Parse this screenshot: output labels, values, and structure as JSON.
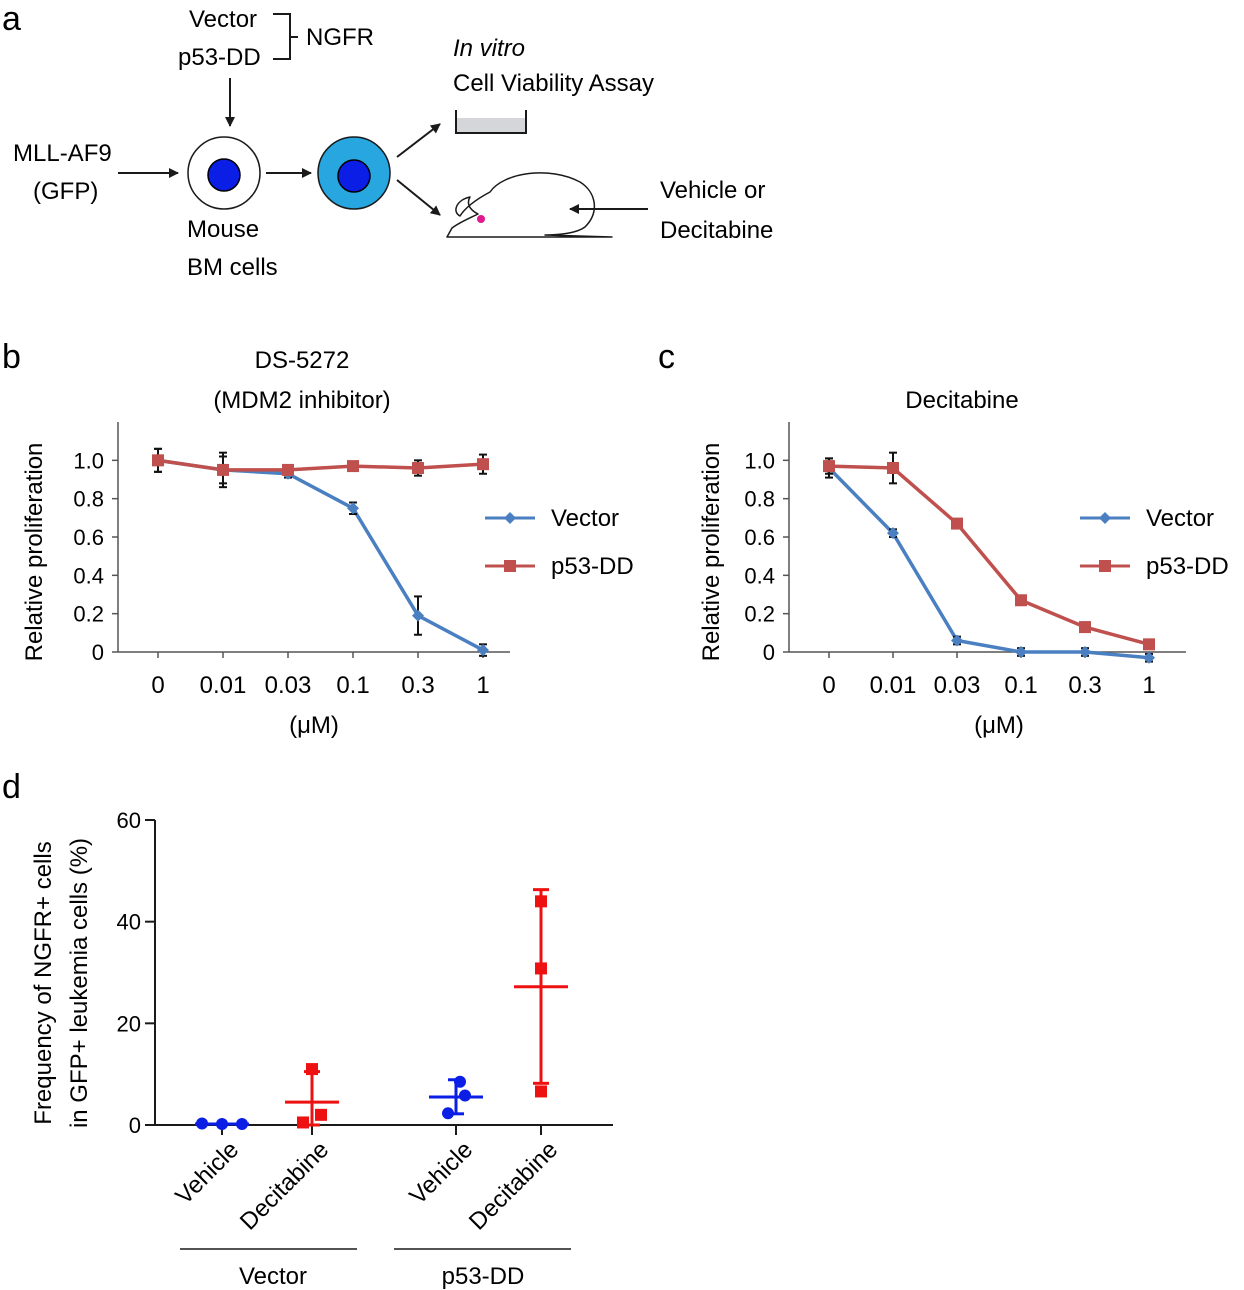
{
  "panel_a": {
    "panel_label": "a",
    "vector": "Vector",
    "p53dd": "p53-DD",
    "ngfr": "NGFR",
    "mllaf9": "MLL-AF9",
    "gfp": "(GFP)",
    "mouse": "Mouse",
    "bm_cells": "BM cells",
    "in_vitro": "In vitro",
    "assay": "Cell Viability Assay",
    "vehicle_or": "Vehicle or",
    "decitabine": "Decitabine",
    "colors": {
      "nucleus": "#0a1ee6",
      "gfp_cell": "#27a6e0",
      "dish_fill": "#d4d6d9",
      "dot": "#e0198c"
    }
  },
  "chart_data": [
    {
      "id": "b",
      "panel_label": "b",
      "type": "line",
      "title": "DS-5272",
      "subtitle": "(MDM2 inhibitor)",
      "ylabel": "Relative proliferation",
      "xlabel": "(μM)",
      "categories": [
        "0",
        "0.01",
        "0.03",
        "0.1",
        "0.3",
        "1"
      ],
      "ylim": [
        0,
        1.2
      ],
      "yticks": [
        "0",
        "0.2",
        "0.4",
        "0.6",
        "0.8",
        "1.0"
      ],
      "series": [
        {
          "name": "Vector",
          "color": "#4a7fc1",
          "marker": "diamond",
          "values": [
            1.0,
            0.95,
            0.93,
            0.75,
            0.19,
            0.01
          ],
          "errors": [
            0.06,
            0.09,
            0.02,
            0.03,
            0.1,
            0.03
          ]
        },
        {
          "name": "p53-DD",
          "color": "#c0504d",
          "marker": "square",
          "values": [
            1.0,
            0.95,
            0.95,
            0.97,
            0.96,
            0.98
          ],
          "errors": [
            0.06,
            0.07,
            0.02,
            0.02,
            0.04,
            0.05
          ]
        }
      ]
    },
    {
      "id": "c",
      "panel_label": "c",
      "type": "line",
      "title": "Decitabine",
      "ylabel": "Relative proliferation",
      "xlabel": "(μM)",
      "categories": [
        "0",
        "0.01",
        "0.03",
        "0.1",
        "0.3",
        "1"
      ],
      "ylim": [
        0,
        1.2
      ],
      "yticks": [
        "0",
        "0.2",
        "0.4",
        "0.6",
        "0.8",
        "1.0"
      ],
      "series": [
        {
          "name": "Vector",
          "color": "#4a7fc1",
          "marker": "diamond",
          "values": [
            0.96,
            0.62,
            0.06,
            0.0,
            0.0,
            -0.03
          ],
          "errors": [
            0.05,
            0.02,
            0.02,
            0.02,
            0.02,
            0.02
          ]
        },
        {
          "name": "p53-DD",
          "color": "#c0504d",
          "marker": "square",
          "values": [
            0.97,
            0.96,
            0.67,
            0.27,
            0.13,
            0.04
          ],
          "errors": [
            0.04,
            0.08,
            0.02,
            0.01,
            0.01,
            0.01
          ]
        }
      ]
    },
    {
      "id": "d",
      "panel_label": "d",
      "type": "scatter",
      "ylabel_line1": "Frequency of NGFR+ cells",
      "ylabel_line2": "in GFP+ leukemia cells (%)",
      "ylim": [
        0,
        60
      ],
      "yticks": [
        "0",
        "20",
        "40",
        "60"
      ],
      "categories": [
        "Vehicle",
        "Decitabine",
        "Vehicle",
        "Decitabine"
      ],
      "groups": [
        "Vector",
        "p53-DD"
      ],
      "series": [
        {
          "name": "Vector Vehicle",
          "color": "#0a1ee6",
          "marker": "circle",
          "points": [
            0.3,
            0.2,
            0.2
          ],
          "mean": 0.2,
          "sd_low": 0.2,
          "sd_high": 0.2
        },
        {
          "name": "Vector Decitabine",
          "color": "#ee1111",
          "marker": "square",
          "points": [
            0.5,
            2.0,
            11.0
          ],
          "mean": 4.5,
          "sd_low": 0,
          "sd_high": 10.5
        },
        {
          "name": "p53-DD Vehicle",
          "color": "#0a1ee6",
          "marker": "circle",
          "points": [
            8.5,
            5.8,
            2.3
          ],
          "mean": 5.5,
          "sd_low": 2.2,
          "sd_high": 8.9
        },
        {
          "name": "p53-DD Decitabine",
          "color": "#ee1111",
          "marker": "square",
          "points": [
            44.0,
            30.8,
            6.6
          ],
          "mean": 27.2,
          "sd_low": 8.2,
          "sd_high": 46.3
        }
      ]
    }
  ]
}
